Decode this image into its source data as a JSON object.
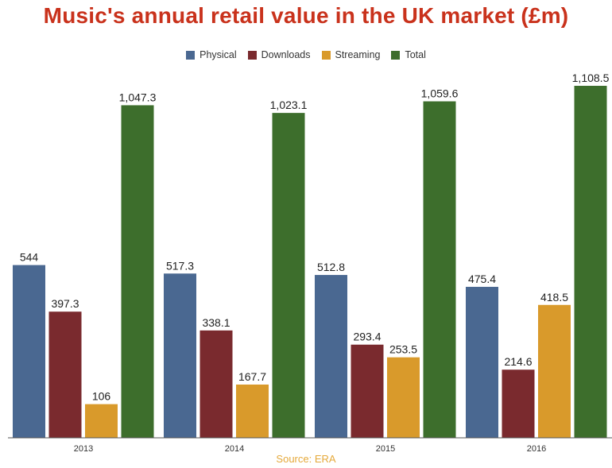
{
  "chart_data": {
    "type": "bar",
    "title": "Music's annual retail value in the UK market (£m)",
    "source": "Source: ERA",
    "categories": [
      "2013",
      "2014",
      "2015",
      "2016"
    ],
    "series": [
      {
        "name": "Physical",
        "color": "#4a6891",
        "values": [
          544,
          517.3,
          512.8,
          475.4
        ],
        "labels": [
          "544",
          "517.3",
          "512.8",
          "475.4"
        ]
      },
      {
        "name": "Downloads",
        "color": "#7a2a2e",
        "values": [
          397.3,
          338.1,
          293.4,
          214.6
        ],
        "labels": [
          "397.3",
          "338.1",
          "293.4",
          "214.6"
        ]
      },
      {
        "name": "Streaming",
        "color": "#d99a2b",
        "values": [
          106,
          167.7,
          253.5,
          418.5
        ],
        "labels": [
          "106",
          "167.7",
          "253.5",
          "418.5"
        ]
      },
      {
        "name": "Total",
        "color": "#3d6e2c",
        "values": [
          1047.3,
          1023.1,
          1059.6,
          1108.5
        ],
        "labels": [
          "1,047.3",
          "1,023.1",
          "1,059.6",
          "1,108.5"
        ]
      }
    ],
    "ylim": [
      0,
      1108.5
    ],
    "grid": false,
    "legend_position": "top-center"
  }
}
